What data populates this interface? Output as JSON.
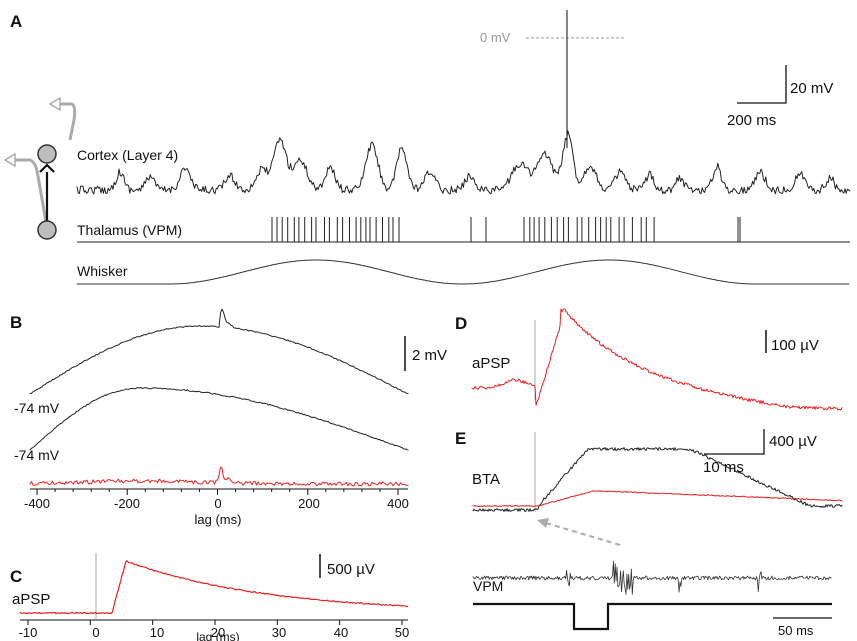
{
  "panels": {
    "A": {
      "letter": "A",
      "cortex_label": "Cortex (Layer 4)",
      "thalamus_label": "Thalamus (VPM)",
      "whisker_label": "Whisker",
      "zero_mv_label": "0 mV",
      "scalebar_v": "20 mV",
      "scalebar_t": "200 ms"
    },
    "B": {
      "letter": "B",
      "scalebar_v": "2 mV",
      "trace1_label": "-74 mV",
      "trace2_label": "-74 mV",
      "xlabel": "lag (ms)",
      "xticks": [
        "-400",
        "-200",
        "0",
        "200",
        "400"
      ]
    },
    "C": {
      "letter": "C",
      "trace_label": "aPSP",
      "scalebar_v": "500 µV",
      "xlabel": "lag (ms)",
      "xticks": [
        "-10",
        "0",
        "10",
        "20",
        "30",
        "40",
        "50"
      ]
    },
    "D": {
      "letter": "D",
      "trace_label": "aPSP",
      "scalebar_v": "100 µV"
    },
    "E": {
      "letter": "E",
      "bta_label": "BTA",
      "scalebar_v": "400 µV",
      "scalebar_t": "10 ms",
      "vpm_label": "VPM",
      "scalebar_t2": "50 ms"
    }
  },
  "colors": {
    "trace": "#222222",
    "red": "#e8211f",
    "gray": "#999999",
    "neuron": "#bdbdbd"
  }
}
